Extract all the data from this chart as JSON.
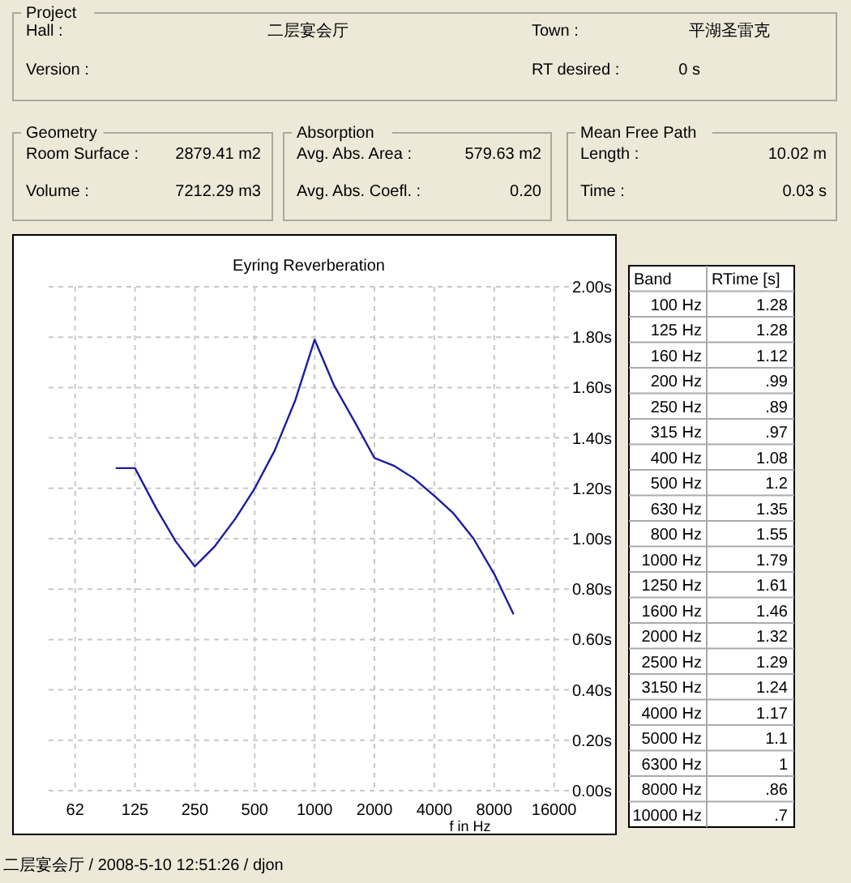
{
  "chart_data": [
    {
      "type": "other",
      "title": "Project",
      "annotations": [
        "Hall :",
        "二层宴会厅",
        "Town :",
        "平湖圣雷克",
        "Version :",
        "RT desired :",
        "0 s"
      ]
    },
    {
      "type": "other",
      "title": "Geometry",
      "annotations": [
        "Room Surface :",
        "2879.41 m2",
        "Volume :",
        "7212.29 m3"
      ]
    },
    {
      "type": "other",
      "title": "Absorption",
      "annotations": [
        "Avg. Abs. Area :",
        "579.63 m2",
        "Avg. Abs. Coefl. :",
        "0.20"
      ]
    },
    {
      "type": "other",
      "title": "Mean Free Path",
      "annotations": [
        "Length :",
        "10.02 m",
        "Time :",
        "0.03 s"
      ]
    },
    {
      "type": "line",
      "title": "Eyring Reverberation",
      "xlabel": "f in Hz",
      "log": "x",
      "grid": true,
      "marker": "none",
      "line_style": "solid",
      "x": [
        100,
        125,
        160,
        200,
        250,
        315,
        400,
        500,
        630,
        800,
        1000,
        1250,
        1600,
        2000,
        2500,
        3150,
        4000,
        5000,
        6300,
        8000,
        10000
      ],
      "series": [
        {
          "color": "#1c1ca0",
          "values": [
            1.28,
            1.28,
            1.12,
            0.99,
            0.89,
            0.97,
            1.08,
            1.2,
            1.35,
            1.55,
            1.79,
            1.61,
            1.46,
            1.32,
            1.29,
            1.24,
            1.17,
            1.1,
            1,
            0.86,
            0.7
          ]
        }
      ],
      "xlim": [
        46,
        19000
      ],
      "xticks": [
        {
          "value": 62.5,
          "label": "62"
        },
        125,
        250,
        500,
        1000,
        2000,
        4000,
        8000,
        16000
      ],
      "ylim": [
        0,
        2
      ],
      "yticks": [
        {
          "value": 0,
          "label": "0.00s"
        },
        {
          "value": 0.2,
          "label": "0.20s"
        },
        {
          "value": 0.4,
          "label": "0.40s"
        },
        {
          "value": 0.6,
          "label": "0.60s"
        },
        {
          "value": 0.8,
          "label": "0.80s"
        },
        {
          "value": 1,
          "label": "1.00s"
        },
        {
          "value": 1.2,
          "label": "1.20s"
        },
        {
          "value": 1.4,
          "label": "1.40s"
        },
        {
          "value": 1.6,
          "label": "1.60s"
        },
        {
          "value": 1.8,
          "label": "1.80s"
        },
        {
          "value": 2,
          "label": "2.00s"
        }
      ],
      "annotations": [
        "二层宴会厅 / 2008-5-10 12:51:26 / djon"
      ]
    },
    {
      "type": "other",
      "annotations": [
        "Band",
        "RTime [s]"
      ],
      "categories": [
        "100 Hz",
        "125 Hz",
        "160 Hz",
        "200 Hz",
        "250 Hz",
        "315 Hz",
        "400 Hz",
        "500 Hz",
        "630 Hz",
        "800 Hz",
        "1000 Hz",
        "1250 Hz",
        "1600 Hz",
        "2000 Hz",
        "2500 Hz",
        "3150 Hz",
        "4000 Hz",
        "5000 Hz",
        "6300 Hz",
        "8000 Hz",
        "10000 Hz"
      ],
      "value_labels": [
        "1.28",
        "1.28",
        "1.12",
        ".99",
        ".89",
        ".97",
        "1.08",
        "1.2",
        "1.35",
        "1.55",
        "1.79",
        "1.61",
        "1.46",
        "1.32",
        "1.29",
        "1.24",
        "1.17",
        "1.1",
        "1",
        ".86",
        ".7"
      ]
    }
  ]
}
